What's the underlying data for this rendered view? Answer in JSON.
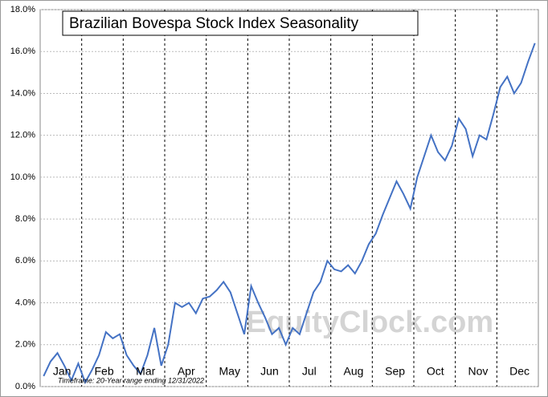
{
  "chart_data": {
    "type": "line",
    "title": "Brazilian Bovespa Stock Index Seasonality",
    "watermark": "EquityClock.com",
    "footnote": "Timeframe: 20-Year range ending 12/31/2022",
    "categories": [
      null,
      null,
      "Jan",
      null,
      null,
      null,
      null,
      null,
      "Feb",
      null,
      null,
      null,
      null,
      null,
      "Mar",
      null,
      null,
      null,
      null,
      null,
      "Apr",
      null,
      null,
      null,
      null,
      null,
      "May",
      null,
      null,
      null,
      null,
      null,
      "Jun",
      null,
      null,
      null,
      null,
      null,
      "Jul",
      null,
      null,
      null,
      null,
      null,
      "Aug",
      null,
      null,
      null,
      null,
      null,
      "Sep",
      null,
      null,
      null,
      null,
      null,
      "Oct",
      null,
      null,
      null,
      null,
      null,
      "Nov",
      null,
      null,
      null,
      null,
      null,
      "Dec",
      null,
      null,
      null
    ],
    "series": [
      {
        "color": "#4472c4",
        "values": [
          0.5,
          1.2,
          1.6,
          1.0,
          0.3,
          1.1,
          0.2,
          0.8,
          1.5,
          2.6,
          2.3,
          2.5,
          1.5,
          1.0,
          0.6,
          1.5,
          2.8,
          1.0,
          2.0,
          4.0,
          3.8,
          4.0,
          3.5,
          4.2,
          4.3,
          4.6,
          5.0,
          4.5,
          3.5,
          2.5,
          4.8,
          4.0,
          3.3,
          2.5,
          2.8,
          2.0,
          2.8,
          2.5,
          3.5,
          4.5,
          5.0,
          6.0,
          5.6,
          5.5,
          5.8,
          5.4,
          6.0,
          6.8,
          7.3,
          8.2,
          9.0,
          9.8,
          9.2,
          8.5,
          10.0,
          11.0,
          12.0,
          11.2,
          10.8,
          11.5,
          12.8,
          12.3,
          11.0,
          12.0,
          11.8,
          13.0,
          14.3,
          14.8,
          14.0,
          14.5,
          15.5,
          16.4
        ]
      }
    ],
    "ylim": [
      0,
      18
    ],
    "yticks": [
      {
        "value": 0,
        "label": "0.0%"
      },
      {
        "value": 2,
        "label": "2.0%"
      },
      {
        "value": 4,
        "label": "4.0%"
      },
      {
        "value": 6,
        "label": "6.0%"
      },
      {
        "value": 8,
        "label": "8.0%"
      },
      {
        "value": 10,
        "label": "10.0%"
      },
      {
        "value": 12,
        "label": "12.0%"
      },
      {
        "value": 14,
        "label": "14.0%"
      },
      {
        "value": 16,
        "label": "16.0%"
      },
      {
        "value": 18,
        "label": "18.0%"
      }
    ],
    "grid": true
  }
}
